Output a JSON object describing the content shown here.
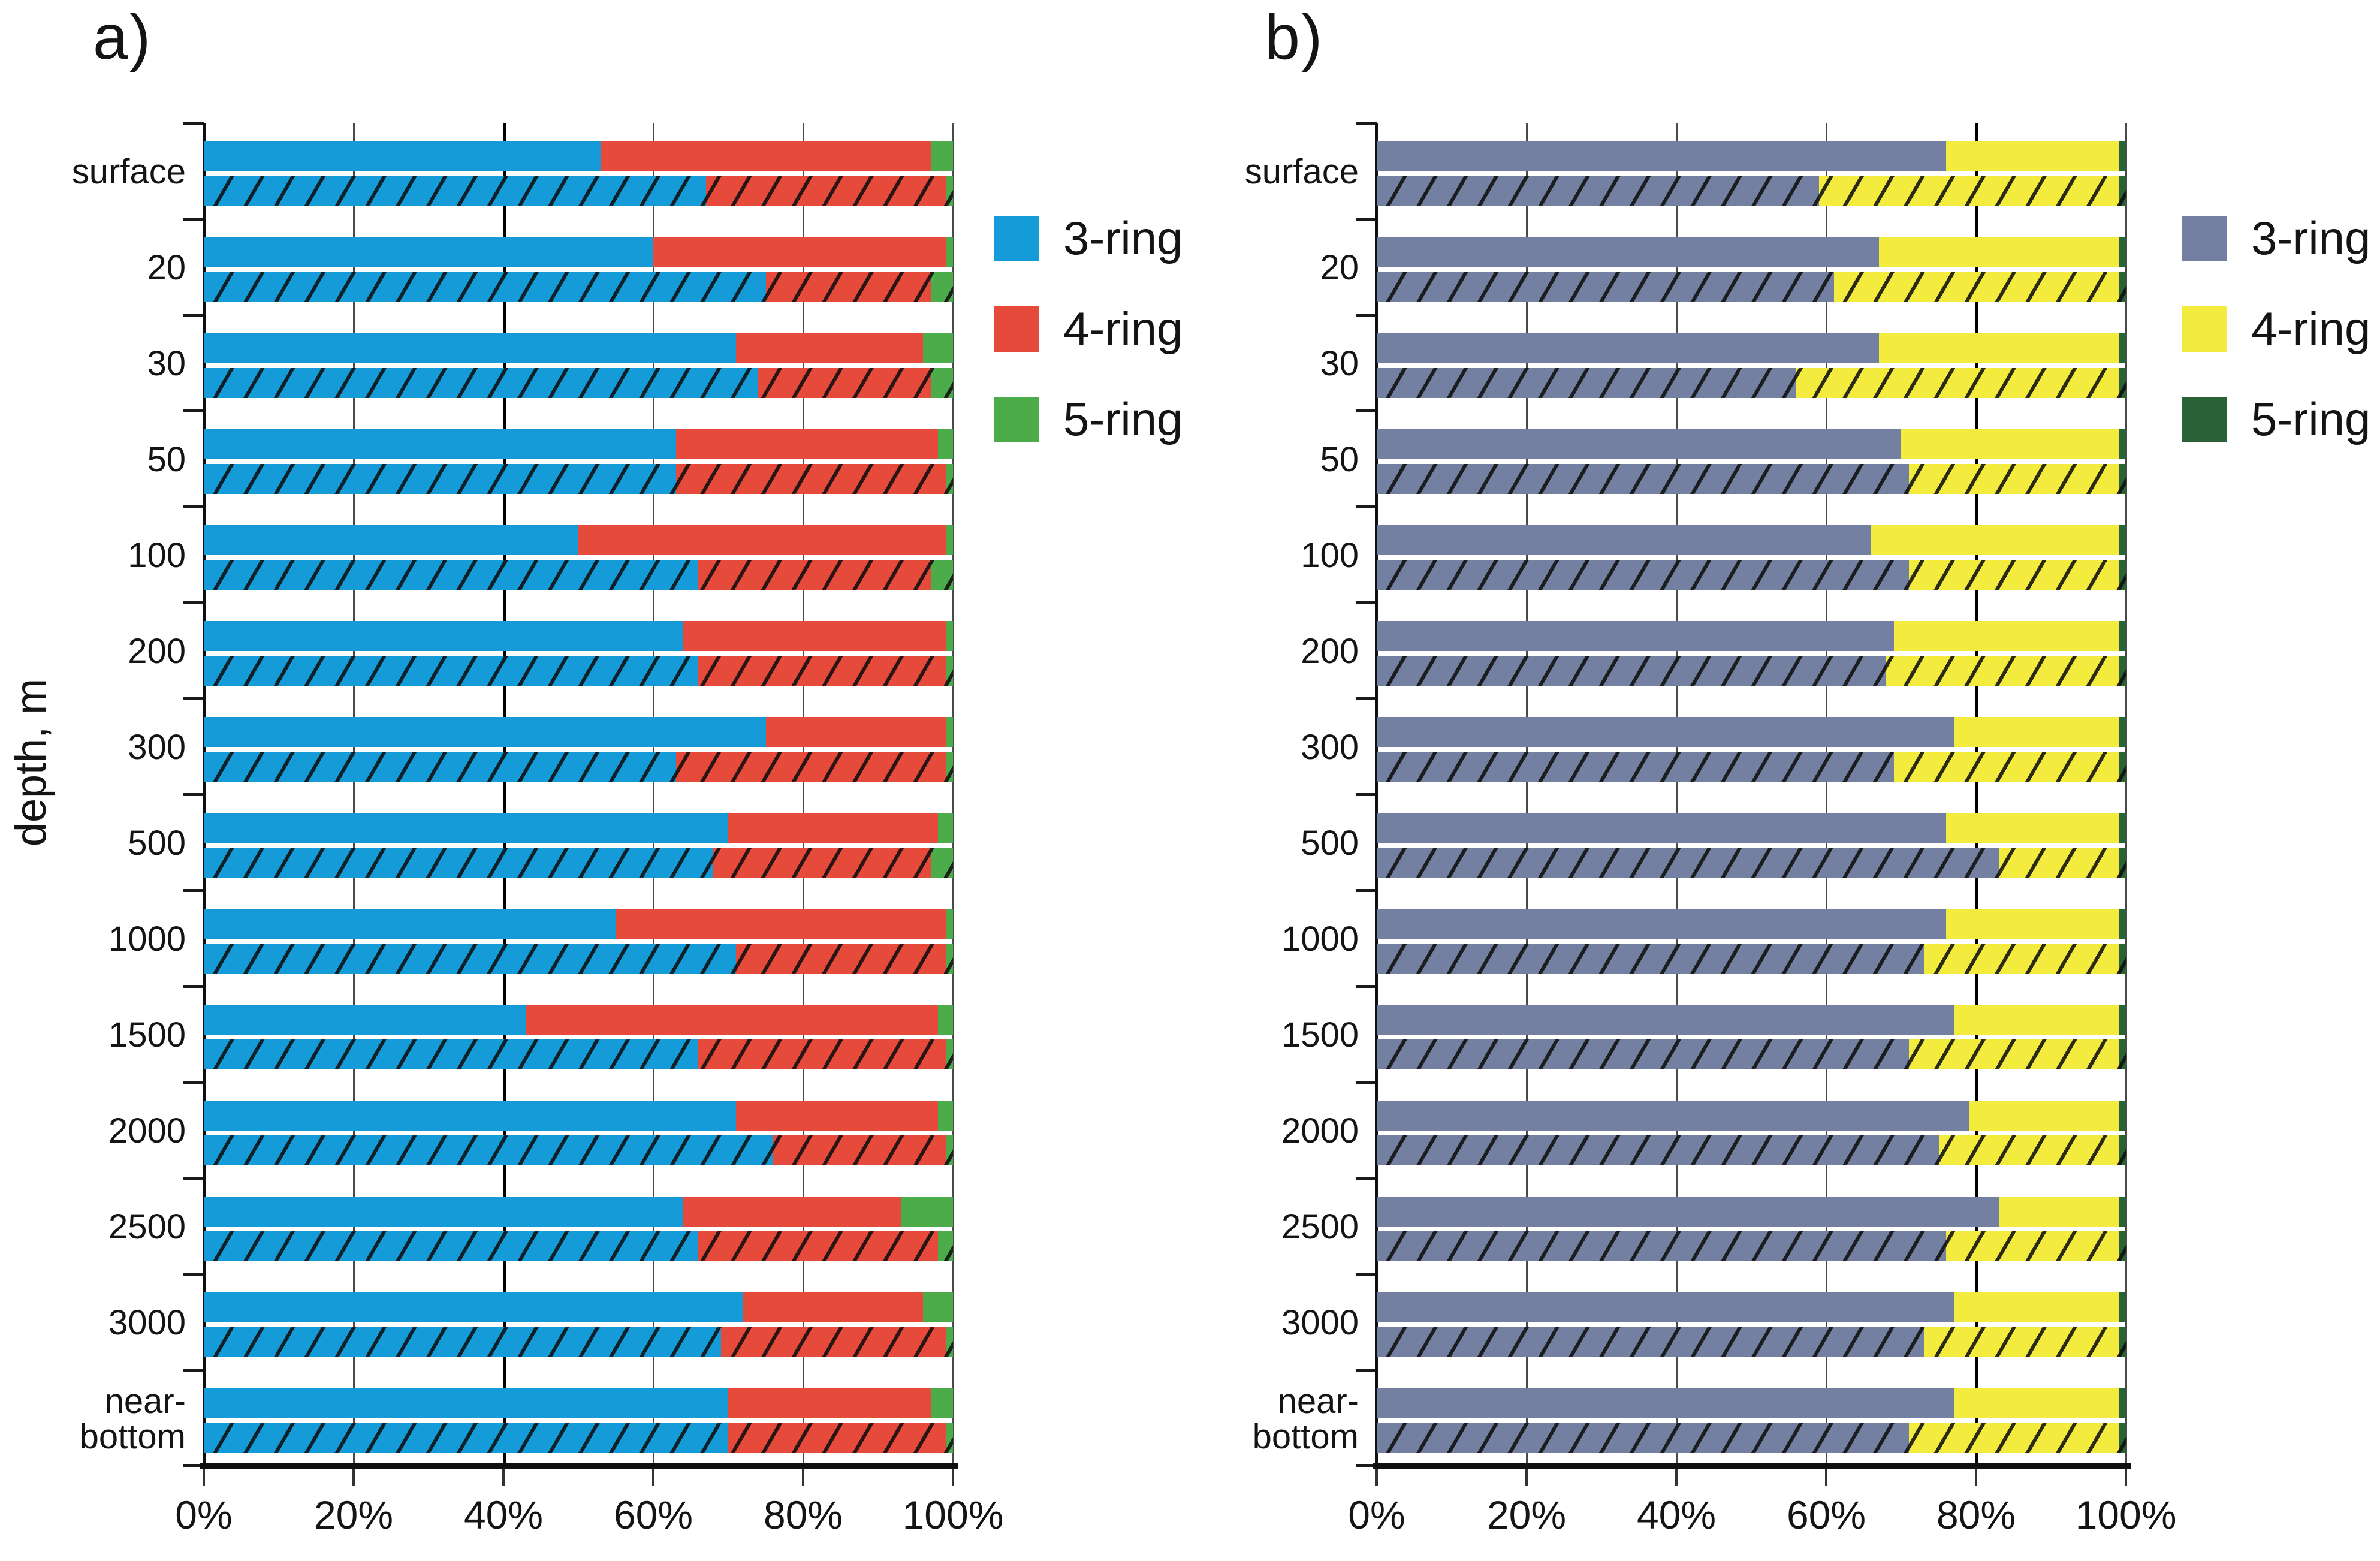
{
  "figure": {
    "y_axis_label": "depth, m",
    "x_tick_labels": [
      "0%",
      "20%",
      "40%",
      "60%",
      "80%",
      "100%"
    ]
  },
  "chart_data": [
    {
      "type": "bar",
      "panel": "a",
      "title": "a)",
      "orientation": "horizontal",
      "stacked": true,
      "units": "percent",
      "xlim": [
        0,
        100
      ],
      "x_ticks": [
        "0%",
        "20%",
        "40%",
        "60%",
        "80%",
        "100%"
      ],
      "emphasized_gridline_index": 2,
      "ylabel": "depth, m",
      "categories": [
        "surface",
        "20",
        "30",
        "50",
        "100",
        "200",
        "300",
        "500",
        "1000",
        "1500",
        "2000",
        "2500",
        "3000",
        "near-\nbottom"
      ],
      "bar_variants_note": "each depth has two bars: upper = solid fill, lower = diagonally hatched fill",
      "legend": [
        {
          "label": "3-ring",
          "color": "#149BD8"
        },
        {
          "label": "4-ring",
          "color": "#E64A3B"
        },
        {
          "label": "5-ring",
          "color": "#4CAC49"
        }
      ],
      "series": [
        {
          "name": "3-ring",
          "variant": "solid",
          "values": [
            53,
            60,
            71,
            63,
            50,
            64,
            75,
            70,
            55,
            43,
            71,
            64,
            72,
            70
          ]
        },
        {
          "name": "4-ring",
          "variant": "solid",
          "values": [
            44,
            39,
            25,
            35,
            49,
            35,
            24,
            28,
            44,
            55,
            27,
            29,
            24,
            27
          ]
        },
        {
          "name": "5-ring",
          "variant": "solid",
          "values": [
            3,
            1,
            4,
            2,
            1,
            1,
            1,
            2,
            1,
            2,
            2,
            7,
            4,
            3
          ]
        },
        {
          "name": "3-ring",
          "variant": "hatched",
          "values": [
            67,
            75,
            74,
            63,
            66,
            66,
            63,
            68,
            71,
            66,
            76,
            66,
            69,
            70
          ]
        },
        {
          "name": "4-ring",
          "variant": "hatched",
          "values": [
            32,
            22,
            23,
            36,
            31,
            33,
            36,
            29,
            28,
            33,
            23,
            32,
            30,
            29
          ]
        },
        {
          "name": "5-ring",
          "variant": "hatched",
          "values": [
            1,
            3,
            3,
            1,
            3,
            1,
            1,
            3,
            1,
            1,
            1,
            2,
            1,
            1
          ]
        }
      ]
    },
    {
      "type": "bar",
      "panel": "b",
      "title": "b)",
      "orientation": "horizontal",
      "stacked": true,
      "units": "percent",
      "xlim": [
        0,
        100
      ],
      "x_ticks": [
        "0%",
        "20%",
        "40%",
        "60%",
        "80%",
        "100%"
      ],
      "emphasized_gridline_index": 4,
      "ylabel": "",
      "categories": [
        "surface",
        "20",
        "30",
        "50",
        "100",
        "200",
        "300",
        "500",
        "1000",
        "1500",
        "2000",
        "2500",
        "3000",
        "near-\nbottom"
      ],
      "bar_variants_note": "each depth has two bars: upper = solid fill, lower = diagonally hatched fill",
      "legend": [
        {
          "label": "3-ring",
          "color": "#7480A1"
        },
        {
          "label": "4-ring",
          "color": "#F3EB3E"
        },
        {
          "label": "5-ring",
          "color": "#2A6136"
        }
      ],
      "series": [
        {
          "name": "3-ring",
          "variant": "solid",
          "values": [
            76,
            67,
            67,
            70,
            66,
            69,
            77,
            76,
            76,
            77,
            79,
            83,
            77,
            77
          ]
        },
        {
          "name": "4-ring",
          "variant": "solid",
          "values": [
            23,
            32,
            32,
            29,
            33,
            30,
            22,
            23,
            23,
            22,
            20,
            16,
            22,
            22
          ]
        },
        {
          "name": "5-ring",
          "variant": "solid",
          "values": [
            1,
            1,
            1,
            1,
            1,
            1,
            1,
            1,
            1,
            1,
            1,
            1,
            1,
            1
          ]
        },
        {
          "name": "3-ring",
          "variant": "hatched",
          "values": [
            59,
            61,
            56,
            71,
            71,
            68,
            69,
            83,
            73,
            71,
            75,
            76,
            73,
            71
          ]
        },
        {
          "name": "4-ring",
          "variant": "hatched",
          "values": [
            40,
            38,
            43,
            28,
            28,
            31,
            30,
            16,
            26,
            28,
            24,
            23,
            26,
            28
          ]
        },
        {
          "name": "5-ring",
          "variant": "hatched",
          "values": [
            1,
            1,
            1,
            1,
            1,
            1,
            1,
            1,
            1,
            1,
            1,
            1,
            1,
            1
          ]
        }
      ]
    }
  ]
}
